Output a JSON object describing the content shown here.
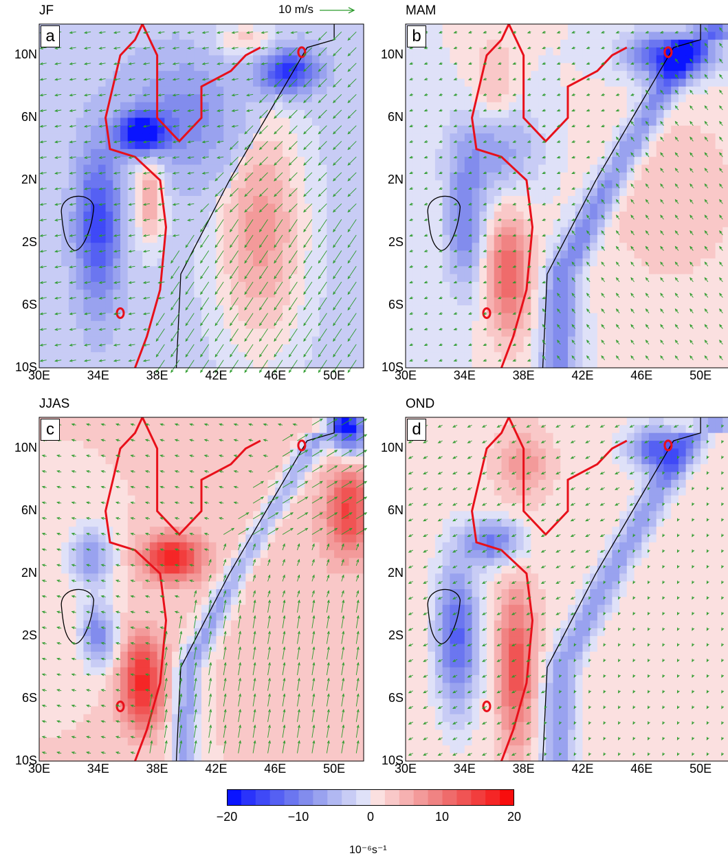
{
  "reference_vector": {
    "label": "10 m/s",
    "speed": 10,
    "color": "#2a9a2a"
  },
  "axes": {
    "lon_range": [
      30,
      52
    ],
    "lat_range": [
      -10,
      12
    ],
    "x_ticks": [
      "30E",
      "34E",
      "38E",
      "42E",
      "46E",
      "50E"
    ],
    "y_ticks": [
      "10N",
      "6N",
      "2N",
      "2S",
      "6S",
      "10S"
    ]
  },
  "panels": [
    {
      "id": "a",
      "letter": "a",
      "season": "JF"
    },
    {
      "id": "b",
      "letter": "b",
      "season": "MAM"
    },
    {
      "id": "c",
      "letter": "c",
      "season": "JJAS"
    },
    {
      "id": "d",
      "letter": "d",
      "season": "OND"
    }
  ],
  "colorbar": {
    "min": -20,
    "max": 20,
    "ticks": [
      "−20",
      "−10",
      "0",
      "10",
      "20"
    ],
    "colors": [
      "#0a14ff",
      "#2a33fb",
      "#3f49f7",
      "#5560f3",
      "#6b76f0",
      "#828ced",
      "#99a2ef",
      "#b1b8f2",
      "#c8ccf5",
      "#dfe1f8",
      "#fbe0e0",
      "#f9c8c8",
      "#f6b1b1",
      "#f39a9a",
      "#f08383",
      "#ef6b6b",
      "#f05454",
      "#f23d3d",
      "#f52626",
      "#f80d0d"
    ],
    "unit": "10⁻⁶s⁻¹"
  },
  "contour_colors": {
    "topography": "#e8101a",
    "coast": "#000000"
  }
}
